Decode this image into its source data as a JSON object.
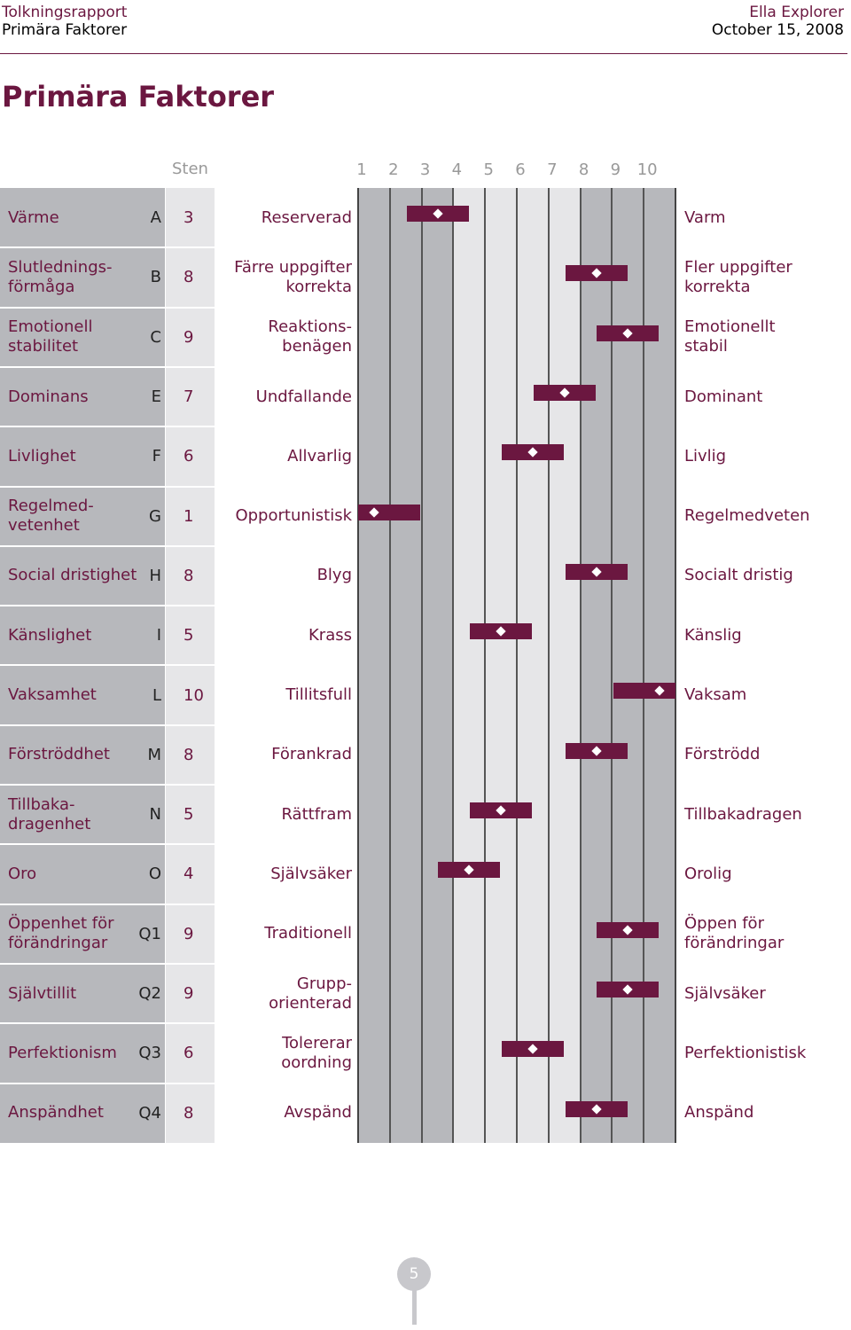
{
  "header": {
    "left_line1": "Tolkningsrapport",
    "left_line2": "Primära Faktorer",
    "right_line1": "Ella Explorer",
    "right_line2": "October 15, 2008"
  },
  "page_title": "Primära Faktorer",
  "sten_label": "Sten",
  "scale": [
    "1",
    "2",
    "3",
    "4",
    "5",
    "6",
    "7",
    "8",
    "9",
    "10"
  ],
  "rows": [
    {
      "name": "Värme",
      "letter": "A",
      "sten": "3",
      "low": "Reserverad",
      "high": "Varm"
    },
    {
      "name": "Slutlednings-\nförmåga",
      "letter": "B",
      "sten": "8",
      "low": "Färre uppgifter\nkorrekta",
      "high": "Fler uppgifter\nkorrekta"
    },
    {
      "name": "Emotionell\nstabilitet",
      "letter": "C",
      "sten": "9",
      "low": "Reaktions-\nbenägen",
      "high": "Emotionellt\nstabil"
    },
    {
      "name": "Dominans",
      "letter": "E",
      "sten": "7",
      "low": "Undfallande",
      "high": "Dominant"
    },
    {
      "name": "Livlighet",
      "letter": "F",
      "sten": "6",
      "low": "Allvarlig",
      "high": "Livlig"
    },
    {
      "name": "Regelmed-\nvetenhet",
      "letter": "G",
      "sten": "1",
      "low": "Opportunistisk",
      "high": "Regelmedveten"
    },
    {
      "name": "Social dristighet",
      "letter": "H",
      "sten": "8",
      "low": "Blyg",
      "high": "Socialt dristig"
    },
    {
      "name": "Känslighet",
      "letter": "I",
      "sten": "5",
      "low": "Krass",
      "high": "Känslig"
    },
    {
      "name": "Vaksamhet",
      "letter": "L",
      "sten": "10",
      "low": "Tillitsfull",
      "high": "Vaksam"
    },
    {
      "name": "Förströddhet",
      "letter": "M",
      "sten": "8",
      "low": "Förankrad",
      "high": "Förströdd"
    },
    {
      "name": "Tillbaka-\ndragenhet",
      "letter": "N",
      "sten": "5",
      "low": "Rättfram",
      "high": "Tillbakadragen"
    },
    {
      "name": "Oro",
      "letter": "O",
      "sten": "4",
      "low": "Självsäker",
      "high": "Orolig"
    },
    {
      "name": "Öppenhet för\nförändringar",
      "letter": "Q1",
      "sten": "9",
      "low": "Traditionell",
      "high": "Öppen för\nförändringar"
    },
    {
      "name": "Självtillit",
      "letter": "Q2",
      "sten": "9",
      "low": "Grupp-\norienterad",
      "high": "Självsäker"
    },
    {
      "name": "Perfektionism",
      "letter": "Q3",
      "sten": "6",
      "low": "Tolererar\noordning",
      "high": "Perfektionistisk"
    },
    {
      "name": "Anspändhet",
      "letter": "Q4",
      "sten": "8",
      "low": "Avspänd",
      "high": "Anspänd"
    }
  ],
  "page_number": "5",
  "colors": {
    "accent": "#6b1740",
    "label_bg": "#b7b8bc",
    "sten_bg": "#e6e6e8"
  }
}
